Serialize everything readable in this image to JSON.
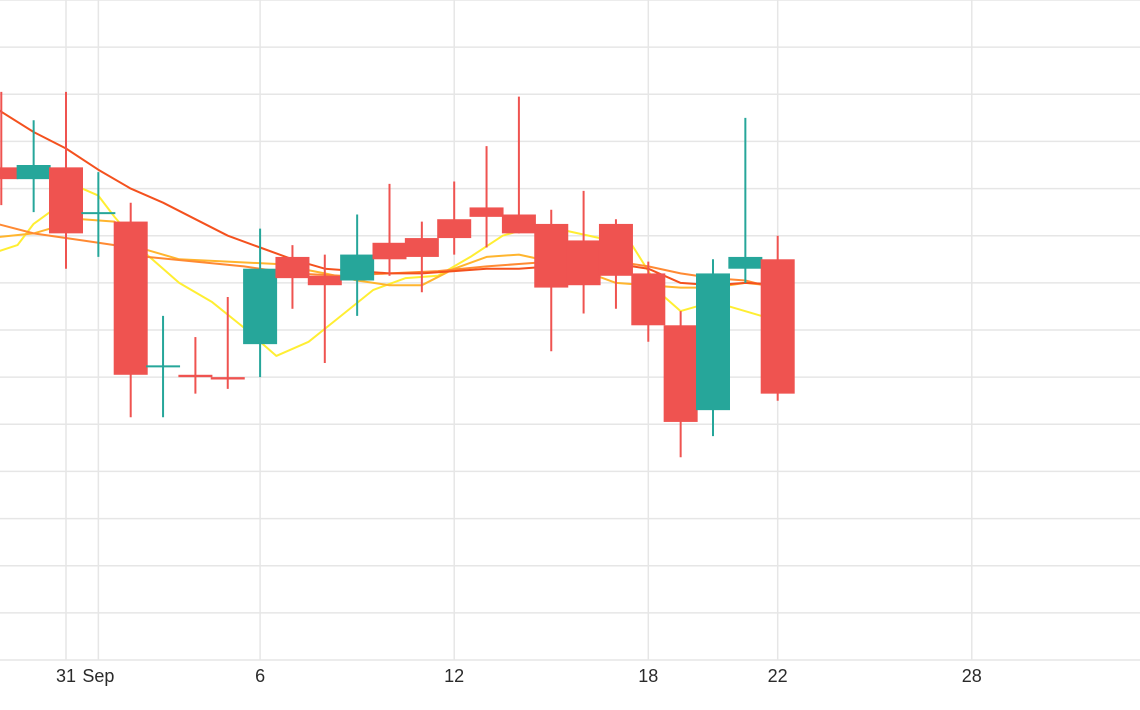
{
  "chart_data": {
    "type": "candlestick",
    "title": "",
    "xlabel": "",
    "ylabel": "",
    "grid": true,
    "legend": "none",
    "x_ticks": [
      {
        "label": "31",
        "day": 0
      },
      {
        "label": "Sep",
        "day": 1
      },
      {
        "label": "6",
        "day": 6
      },
      {
        "label": "12",
        "day": 12
      },
      {
        "label": "18",
        "day": 18
      },
      {
        "label": "22",
        "day": 22
      },
      {
        "label": "28",
        "day": 28
      }
    ],
    "colors": {
      "up": "#26a69a",
      "down": "#ef5350",
      "grid": "#e6e6e6",
      "ma_fast": "#ffee33",
      "ma_mid": "#ffb52e",
      "ma_slow": "#ff8a33",
      "ma_long": "#f4511e"
    },
    "ylim": [
      0,
      14
    ],
    "candles": [
      {
        "day": -2,
        "open": 10.45,
        "high": 12.05,
        "low": 9.65,
        "close": 10.2
      },
      {
        "day": -1,
        "open": 10.2,
        "high": 11.45,
        "low": 9.5,
        "close": 10.5
      },
      {
        "day": 0,
        "open": 10.45,
        "high": 12.05,
        "low": 8.3,
        "close": 9.05
      },
      {
        "day": 1,
        "open": 9.5,
        "high": 10.35,
        "low": 8.55,
        "close": 9.5
      },
      {
        "day": 2,
        "open": 9.3,
        "high": 9.7,
        "low": 5.15,
        "close": 6.05
      },
      {
        "day": 3,
        "open": 6.25,
        "high": 7.3,
        "low": 5.15,
        "close": 6.25
      },
      {
        "day": 4,
        "open": 6.05,
        "high": 6.85,
        "low": 5.65,
        "close": 6.0
      },
      {
        "day": 5,
        "open": 6.0,
        "high": 7.7,
        "low": 5.75,
        "close": 5.95
      },
      {
        "day": 6,
        "open": 6.7,
        "high": 9.15,
        "low": 6.0,
        "close": 8.3
      },
      {
        "day": 7,
        "open": 8.55,
        "high": 8.8,
        "low": 7.45,
        "close": 8.1
      },
      {
        "day": 8,
        "open": 8.15,
        "high": 8.6,
        "low": 6.3,
        "close": 7.95
      },
      {
        "day": 9,
        "open": 8.05,
        "high": 9.45,
        "low": 7.3,
        "close": 8.6
      },
      {
        "day": 10,
        "open": 8.85,
        "high": 10.1,
        "low": 8.15,
        "close": 8.5
      },
      {
        "day": 11,
        "open": 8.95,
        "high": 9.3,
        "low": 7.8,
        "close": 8.55
      },
      {
        "day": 12,
        "open": 9.35,
        "high": 10.15,
        "low": 8.6,
        "close": 8.95
      },
      {
        "day": 13,
        "open": 9.6,
        "high": 10.9,
        "low": 8.75,
        "close": 9.4
      },
      {
        "day": 14,
        "open": 9.45,
        "high": 11.95,
        "low": 9.05,
        "close": 9.05
      },
      {
        "day": 15,
        "open": 9.25,
        "high": 9.55,
        "low": 6.55,
        "close": 7.9
      },
      {
        "day": 16,
        "open": 8.9,
        "high": 9.95,
        "low": 7.35,
        "close": 7.95
      },
      {
        "day": 17,
        "open": 9.25,
        "high": 9.35,
        "low": 7.45,
        "close": 8.15
      },
      {
        "day": 18,
        "open": 8.2,
        "high": 8.45,
        "low": 6.75,
        "close": 7.1
      },
      {
        "day": 19,
        "open": 7.1,
        "high": 7.4,
        "low": 4.3,
        "close": 5.05
      },
      {
        "day": 20,
        "open": 5.3,
        "high": 8.5,
        "low": 4.75,
        "close": 8.2
      },
      {
        "day": 21,
        "open": 8.3,
        "high": 11.5,
        "low": 8.0,
        "close": 8.55
      },
      {
        "day": 22,
        "open": 8.5,
        "high": 9.0,
        "low": 5.5,
        "close": 5.65
      }
    ],
    "moving_averages": [
      {
        "color_key": "ma_fast",
        "points": [
          [
            -2.4,
            8.6
          ],
          [
            -1.5,
            8.8
          ],
          [
            -1.0,
            9.25
          ],
          [
            0.0,
            9.75
          ],
          [
            0.5,
            10.0
          ],
          [
            1.0,
            9.85
          ],
          [
            1.5,
            9.4
          ],
          [
            2.5,
            8.6
          ],
          [
            3.5,
            8.0
          ],
          [
            4.5,
            7.6
          ],
          [
            5.5,
            7.05
          ],
          [
            6.5,
            6.45
          ],
          [
            7.5,
            6.75
          ],
          [
            8.5,
            7.3
          ],
          [
            9.5,
            7.85
          ],
          [
            10.5,
            8.1
          ],
          [
            11.5,
            8.15
          ],
          [
            12.5,
            8.55
          ],
          [
            13.5,
            9.0
          ],
          [
            14.5,
            9.2
          ],
          [
            15.5,
            9.1
          ],
          [
            16.5,
            8.95
          ],
          [
            17.5,
            8.8
          ],
          [
            18.5,
            7.7
          ],
          [
            19.0,
            7.4
          ],
          [
            19.5,
            7.5
          ],
          [
            20.5,
            7.5
          ],
          [
            21.5,
            7.3
          ],
          [
            22.4,
            6.95
          ]
        ]
      },
      {
        "color_key": "ma_mid",
        "points": [
          [
            -2.4,
            8.95
          ],
          [
            -1.0,
            9.05
          ],
          [
            0.5,
            9.35
          ],
          [
            1.5,
            9.3
          ],
          [
            2.5,
            8.7
          ],
          [
            3.5,
            8.5
          ],
          [
            5.0,
            8.45
          ],
          [
            6.5,
            8.4
          ],
          [
            8.0,
            8.2
          ],
          [
            9.0,
            8.05
          ],
          [
            10.0,
            7.95
          ],
          [
            11.0,
            7.95
          ],
          [
            12.0,
            8.3
          ],
          [
            13.0,
            8.55
          ],
          [
            14.0,
            8.6
          ],
          [
            15.0,
            8.45
          ],
          [
            16.0,
            8.25
          ],
          [
            17.0,
            8.0
          ],
          [
            18.0,
            7.95
          ],
          [
            19.0,
            7.9
          ],
          [
            20.0,
            7.9
          ],
          [
            21.0,
            8.0
          ],
          [
            22.4,
            7.9
          ]
        ]
      },
      {
        "color_key": "ma_slow",
        "points": [
          [
            -2.4,
            9.3
          ],
          [
            -1.0,
            9.05
          ],
          [
            0.5,
            8.9
          ],
          [
            1.5,
            8.8
          ],
          [
            2.5,
            8.55
          ],
          [
            4.0,
            8.45
          ],
          [
            5.5,
            8.35
          ],
          [
            7.0,
            8.2
          ],
          [
            8.5,
            8.15
          ],
          [
            10.0,
            8.2
          ],
          [
            11.5,
            8.25
          ],
          [
            13.0,
            8.35
          ],
          [
            14.0,
            8.4
          ],
          [
            15.0,
            8.45
          ],
          [
            16.0,
            8.45
          ],
          [
            17.0,
            8.45
          ],
          [
            18.0,
            8.35
          ],
          [
            19.0,
            8.2
          ],
          [
            20.0,
            8.1
          ],
          [
            21.0,
            8.05
          ],
          [
            22.4,
            7.8
          ]
        ]
      },
      {
        "color_key": "ma_long",
        "points": [
          [
            -2.4,
            11.8
          ],
          [
            -1.0,
            11.2
          ],
          [
            0.0,
            10.85
          ],
          [
            1.0,
            10.4
          ],
          [
            2.0,
            10.0
          ],
          [
            3.0,
            9.7
          ],
          [
            4.0,
            9.35
          ],
          [
            5.0,
            9.0
          ],
          [
            6.0,
            8.75
          ],
          [
            7.0,
            8.5
          ],
          [
            8.0,
            8.3
          ],
          [
            9.0,
            8.25
          ],
          [
            10.0,
            8.2
          ],
          [
            11.0,
            8.2
          ],
          [
            12.0,
            8.25
          ],
          [
            13.0,
            8.3
          ],
          [
            14.0,
            8.3
          ],
          [
            15.0,
            8.35
          ],
          [
            16.0,
            8.4
          ],
          [
            17.0,
            8.4
          ],
          [
            18.0,
            8.3
          ],
          [
            19.0,
            8.0
          ],
          [
            20.0,
            7.95
          ],
          [
            21.0,
            8.0
          ],
          [
            22.4,
            7.95
          ]
        ]
      }
    ]
  }
}
